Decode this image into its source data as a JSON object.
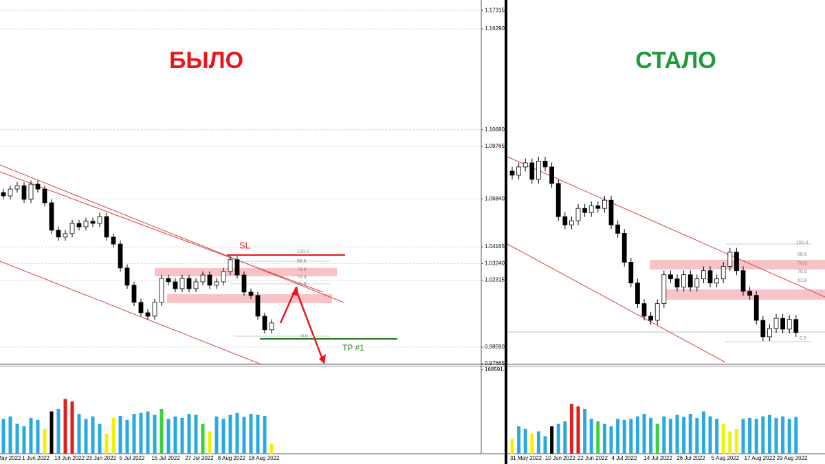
{
  "chart_data": [
    {
      "type": "candlestick",
      "title": "БЫЛО",
      "color": "#e8161b",
      "grid": true,
      "ylim": [
        0.9763,
        1.179
      ],
      "yticks": [
        {
          "value": 1.17315,
          "label": "1.17315"
        },
        {
          "value": 1.1629,
          "label": "1.16290"
        },
        {
          "value": 1.1068,
          "label": "1.10680"
        },
        {
          "value": 1.09765,
          "label": "1.09765"
        },
        {
          "value": 1.0684,
          "label": "1.06840"
        },
        {
          "value": 1.04165,
          "label": "1.04165"
        },
        {
          "value": 1.0324,
          "label": "1.03240"
        },
        {
          "value": 1.02315,
          "label": "1.02315"
        },
        {
          "value": 0.9859,
          "label": "0.98590"
        },
        {
          "value": 0.97665,
          "label": "0.97665"
        }
      ],
      "up_color": "#ffffff",
      "down_color": "#000000",
      "x_labels": [
        "May 2022",
        "1 Jun 2022",
        "13 Jun 2022",
        "23 Jun 2022",
        "5 Jul 2022",
        "15 Jul 2022",
        "27 Jul 2022",
        "8 Aug 2022",
        "18 Aug 2022"
      ],
      "annotations": {
        "sl": "SL",
        "tp": "TP #1",
        "fib": [
          "100.0",
          "88.6",
          "78.6",
          "76.4",
          "61.8",
          "0.0"
        ]
      },
      "open": [
        1.0719,
        1.07,
        1.0738,
        1.0757,
        1.0681,
        1.0765,
        1.0738,
        1.0662,
        1.0509,
        1.0471,
        1.049,
        1.0547,
        1.0528,
        1.0559,
        1.0547,
        1.0585,
        1.0471,
        1.0432,
        1.0299,
        1.0203,
        1.0108,
        1.005,
        1.0031,
        1.0108,
        1.0241,
        1.0222,
        1.0184,
        1.0241,
        1.0184,
        1.0222,
        1.026,
        1.0203,
        1.0222,
        1.028,
        1.0345,
        1.026,
        1.0165,
        1.0146,
        1.0031,
        0.9955
      ],
      "high": [
        1.0739,
        1.0758,
        1.0777,
        1.0777,
        1.0785,
        1.0785,
        1.0758,
        1.0682,
        1.0529,
        1.051,
        1.0567,
        1.0567,
        1.0579,
        1.0579,
        1.0605,
        1.0605,
        1.0491,
        1.0452,
        1.0319,
        1.0223,
        1.0128,
        1.007,
        1.0128,
        1.0261,
        1.0261,
        1.0242,
        1.0261,
        1.0261,
        1.0242,
        1.028,
        1.028,
        1.0242,
        1.03,
        1.0365,
        1.0365,
        1.028,
        1.0185,
        1.0166,
        1.0051,
        1.0013
      ],
      "low": [
        1.068,
        1.068,
        1.0718,
        1.0661,
        1.0661,
        1.0718,
        1.0642,
        1.0489,
        1.0451,
        1.0451,
        1.047,
        1.0508,
        1.0508,
        1.0527,
        1.0527,
        1.0451,
        1.0412,
        1.0279,
        1.0183,
        1.0088,
        1.003,
        1.0011,
        1.0011,
        1.0088,
        1.0202,
        1.0164,
        1.0164,
        1.0164,
        1.0164,
        1.0202,
        1.0183,
        1.0183,
        1.0202,
        1.026,
        1.024,
        1.0145,
        1.0126,
        1.0011,
        0.9935,
        0.9935
      ],
      "close": [
        1.07,
        1.0738,
        1.0757,
        1.0681,
        1.0765,
        1.0738,
        1.0662,
        1.0509,
        1.0471,
        1.049,
        1.0547,
        1.0528,
        1.0559,
        1.0547,
        1.0585,
        1.0471,
        1.0432,
        1.0299,
        1.0203,
        1.0108,
        1.005,
        1.0031,
        1.0108,
        1.0241,
        1.0222,
        1.0184,
        1.0241,
        1.0184,
        1.0222,
        1.026,
        1.0203,
        1.0222,
        1.028,
        1.0345,
        1.026,
        1.0165,
        1.0146,
        1.0031,
        0.9955,
        0.9993
      ],
      "volume": {
        "ylim": [
          0,
          168591.1
        ],
        "yticks": [
          168591.1
        ],
        "values": [
          70000,
          75000,
          60000,
          55000,
          72000,
          68000,
          50000,
          85000,
          90000,
          110000,
          105000,
          80000,
          70000,
          75000,
          60000,
          40000,
          72000,
          76000,
          68000,
          80000,
          82000,
          85000,
          78000,
          90000,
          70000,
          75000,
          72000,
          80000,
          78000,
          60000,
          45000,
          75000,
          70000,
          78000,
          82000,
          74000,
          80000,
          78000,
          76000,
          20000
        ],
        "colors": [
          "#29a9e0",
          "#29a9e0",
          "#29a9e0",
          "#29a9e0",
          "#29a9e0",
          "#29a9e0",
          "#f2f200",
          "#000000",
          "#29a9e0",
          "#e01e1e",
          "#e01e1e",
          "#29a9e0",
          "#29a9e0",
          "#29a9e0",
          "#29a9e0",
          "#f2f200",
          "#f2f200",
          "#29a9e0",
          "#29a9e0",
          "#29a9e0",
          "#29a9e0",
          "#29a9e0",
          "#29a9e0",
          "#3ad13a",
          "#29a9e0",
          "#29a9e0",
          "#29a9e0",
          "#29a9e0",
          "#29a9e0",
          "#3ad13a",
          "#f2f200",
          "#29a9e0",
          "#29a9e0",
          "#29a9e0",
          "#29a9e0",
          "#29a9e0",
          "#29a9e0",
          "#29a9e0",
          "#29a9e0",
          "#f2f200"
        ]
      }
    },
    {
      "type": "candlestick",
      "title": "СТАЛО",
      "color": "#1e9a3c",
      "grid": false,
      "ylim": [
        0.9828,
        1.1508
      ],
      "up_color": "#ffffff",
      "down_color": "#000000",
      "x_labels": [
        "31 May 2022",
        "10 Jun 2022",
        "22 Jun 2022",
        "4 Jul 2022",
        "14 Jul 2022",
        "26 Jul 2022",
        "5 Aug 2022",
        "17 Aug 2022",
        "29 Aug 2022"
      ],
      "annotations": {
        "fib": [
          "100.0",
          "88.6",
          "78.6",
          "70.5",
          "61.8",
          "0.0"
        ]
      },
      "open": [
        1.0719,
        1.07,
        1.0738,
        1.0757,
        1.0681,
        1.0765,
        1.0738,
        1.0662,
        1.0509,
        1.0471,
        1.049,
        1.0547,
        1.0528,
        1.0559,
        1.0547,
        1.0585,
        1.0471,
        1.0432,
        1.0299,
        1.0203,
        1.0108,
        1.005,
        1.0031,
        1.0108,
        1.0241,
        1.0222,
        1.0184,
        1.0241,
        1.0184,
        1.0222,
        1.026,
        1.0203,
        1.0222,
        1.028,
        1.0345,
        1.026,
        1.0165,
        1.0146,
        1.0031,
        0.9955,
        0.9993,
        1.004,
        0.999,
        1.0035
      ],
      "high": [
        1.0739,
        1.0758,
        1.0777,
        1.0777,
        1.0785,
        1.0785,
        1.0758,
        1.0682,
        1.0529,
        1.051,
        1.0567,
        1.0567,
        1.0579,
        1.0579,
        1.0605,
        1.0605,
        1.0491,
        1.0452,
        1.0319,
        1.0223,
        1.0128,
        1.007,
        1.0128,
        1.0261,
        1.0261,
        1.0242,
        1.0261,
        1.0261,
        1.0242,
        1.028,
        1.028,
        1.0242,
        1.03,
        1.0365,
        1.0365,
        1.028,
        1.0185,
        1.0166,
        1.0051,
        1.0013,
        1.006,
        1.006,
        1.0055,
        1.0055
      ],
      "low": [
        1.068,
        1.068,
        1.0718,
        1.0661,
        1.0661,
        1.0718,
        1.0642,
        1.0489,
        1.0451,
        1.0451,
        1.047,
        1.0508,
        1.0508,
        1.0527,
        1.0527,
        1.0451,
        1.0412,
        1.0279,
        1.0183,
        1.0088,
        1.003,
        1.0011,
        1.0011,
        1.0088,
        1.0202,
        1.0164,
        1.0164,
        1.0164,
        1.0164,
        1.0202,
        1.0183,
        1.0183,
        1.0202,
        1.026,
        1.024,
        1.0145,
        1.0126,
        1.0011,
        0.9935,
        0.9935,
        0.9973,
        0.997,
        0.997,
        0.9955
      ],
      "close": [
        1.07,
        1.0738,
        1.0757,
        1.0681,
        1.0765,
        1.0738,
        1.0662,
        1.0509,
        1.0471,
        1.049,
        1.0547,
        1.0528,
        1.0559,
        1.0547,
        1.0585,
        1.0471,
        1.0432,
        1.0299,
        1.0203,
        1.0108,
        1.005,
        1.0031,
        1.0108,
        1.0241,
        1.0222,
        1.0184,
        1.0241,
        1.0184,
        1.0222,
        1.026,
        1.0203,
        1.0222,
        1.028,
        1.0345,
        1.026,
        1.0165,
        1.0146,
        1.0031,
        0.9955,
        0.9993,
        1.004,
        0.999,
        1.0035,
        0.9975
      ],
      "volume": {
        "ylim": [
          0,
          168591.1
        ],
        "values": [
          30000,
          55000,
          50000,
          40000,
          45000,
          35000,
          55000,
          60000,
          65000,
          100000,
          95000,
          90000,
          70000,
          65000,
          60000,
          55000,
          70000,
          68000,
          70000,
          75000,
          80000,
          72000,
          60000,
          75000,
          70000,
          78000,
          74000,
          80000,
          72000,
          85000,
          75000,
          70000,
          60000,
          45000,
          50000,
          70000,
          72000,
          70000,
          75000,
          78000,
          72000,
          75000,
          70000,
          74000
        ],
        "colors": [
          "#f2f200",
          "#29a9e0",
          "#29a9e0",
          "#f2f200",
          "#29a9e0",
          "#29a9e0",
          "#000000",
          "#29a9e0",
          "#29a9e0",
          "#e01e1e",
          "#e01e1e",
          "#29a9e0",
          "#29a9e0",
          "#3ad13a",
          "#29a9e0",
          "#29a9e0",
          "#29a9e0",
          "#29a9e0",
          "#29a9e0",
          "#29a9e0",
          "#29a9e0",
          "#29a9e0",
          "#3ad13a",
          "#29a9e0",
          "#29a9e0",
          "#29a9e0",
          "#29a9e0",
          "#29a9e0",
          "#29a9e0",
          "#29a9e0",
          "#29a9e0",
          "#29a9e0",
          "#f2f200",
          "#f2f200",
          "#f2f200",
          "#29a9e0",
          "#29a9e0",
          "#29a9e0",
          "#29a9e0",
          "#29a9e0",
          "#29a9e0",
          "#29a9e0",
          "#29a9e0",
          "#29a9e0"
        ]
      }
    }
  ]
}
